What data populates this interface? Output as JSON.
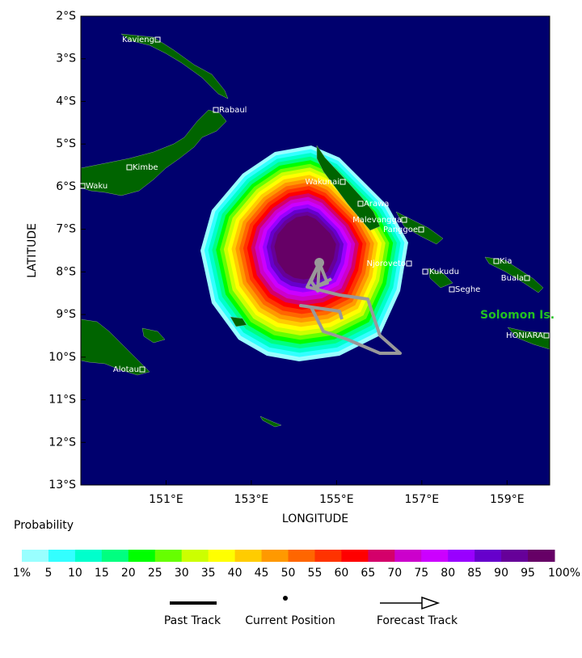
{
  "map": {
    "xlabel": "LONGITUDE",
    "ylabel": "LATITUDE",
    "xlim": [
      149,
      160
    ],
    "ylim": [
      -13,
      -2
    ],
    "xticks": [
      {
        "value": 151,
        "label": "151°E"
      },
      {
        "value": 153,
        "label": "153°E"
      },
      {
        "value": 155,
        "label": "155°E"
      },
      {
        "value": 157,
        "label": "157°E"
      },
      {
        "value": 159,
        "label": "159°E"
      }
    ],
    "yticks": [
      {
        "value": -2,
        "label": "2°S"
      },
      {
        "value": -3,
        "label": "3°S"
      },
      {
        "value": -4,
        "label": "4°S"
      },
      {
        "value": -5,
        "label": "5°S"
      },
      {
        "value": -6,
        "label": "6°S"
      },
      {
        "value": -7,
        "label": "7°S"
      },
      {
        "value": -8,
        "label": "8°S"
      },
      {
        "value": -9,
        "label": "9°S"
      },
      {
        "value": -10,
        "label": "10°S"
      },
      {
        "value": -11,
        "label": "11°S"
      },
      {
        "value": -12,
        "label": "12°S"
      },
      {
        "value": -13,
        "label": "13°S"
      }
    ],
    "places": [
      "Kavieng",
      "Rabaul",
      "Kimbe",
      "Waku",
      "Wakunai",
      "Arawa",
      "Malevangga",
      "Panggoe",
      "Njoroveto",
      "Kukudu",
      "Kia",
      "Buala",
      "Seghe",
      "HONIARA",
      "Alotau"
    ],
    "region": "Solomon Is."
  },
  "colorbar": {
    "title": "Probability",
    "labels": [
      "1%",
      "5",
      "10",
      "15",
      "20",
      "25",
      "30",
      "35",
      "40",
      "45",
      "50",
      "55",
      "60",
      "65",
      "70",
      "75",
      "80",
      "85",
      "90",
      "95",
      "100%"
    ],
    "colors": [
      "#99ffff",
      "#33ffff",
      "#00ffcc",
      "#00ff80",
      "#00ff00",
      "#66ff00",
      "#ccff00",
      "#ffff00",
      "#ffcc00",
      "#ff9900",
      "#ff6600",
      "#ff3300",
      "#ff0000",
      "#d4006a",
      "#cc00cc",
      "#cc00ff",
      "#9900ff",
      "#6600cc",
      "#660099",
      "#660066"
    ]
  },
  "legend": [
    "Past Track",
    "Current Position",
    "Forecast Track"
  ]
}
